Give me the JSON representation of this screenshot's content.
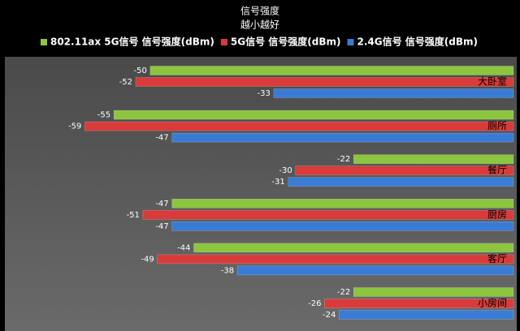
{
  "chart_data": {
    "type": "bar",
    "orientation": "horizontal",
    "title": "信号强度",
    "subtitle": "越小越好",
    "categories": [
      "大卧室",
      "厕所",
      "餐厅",
      "厨房",
      "客厅",
      "小房间"
    ],
    "series": [
      {
        "name": "802.11ax 5G信号 信号强度(dBm)",
        "color": "#8cc63f",
        "values": [
          -50,
          -55,
          -22,
          -47,
          -44,
          -22
        ]
      },
      {
        "name": "5G信号 信号强度(dBm)",
        "color": "#d93a3a",
        "values": [
          -52,
          -59,
          -30,
          -51,
          -49,
          -26
        ]
      },
      {
        "name": "2.4G信号 信号强度(dBm)",
        "color": "#3a7bd5",
        "values": [
          -33,
          -47,
          -31,
          -47,
          -38,
          -24
        ]
      }
    ],
    "xlim": [
      -70,
      0
    ],
    "legend": "top"
  }
}
